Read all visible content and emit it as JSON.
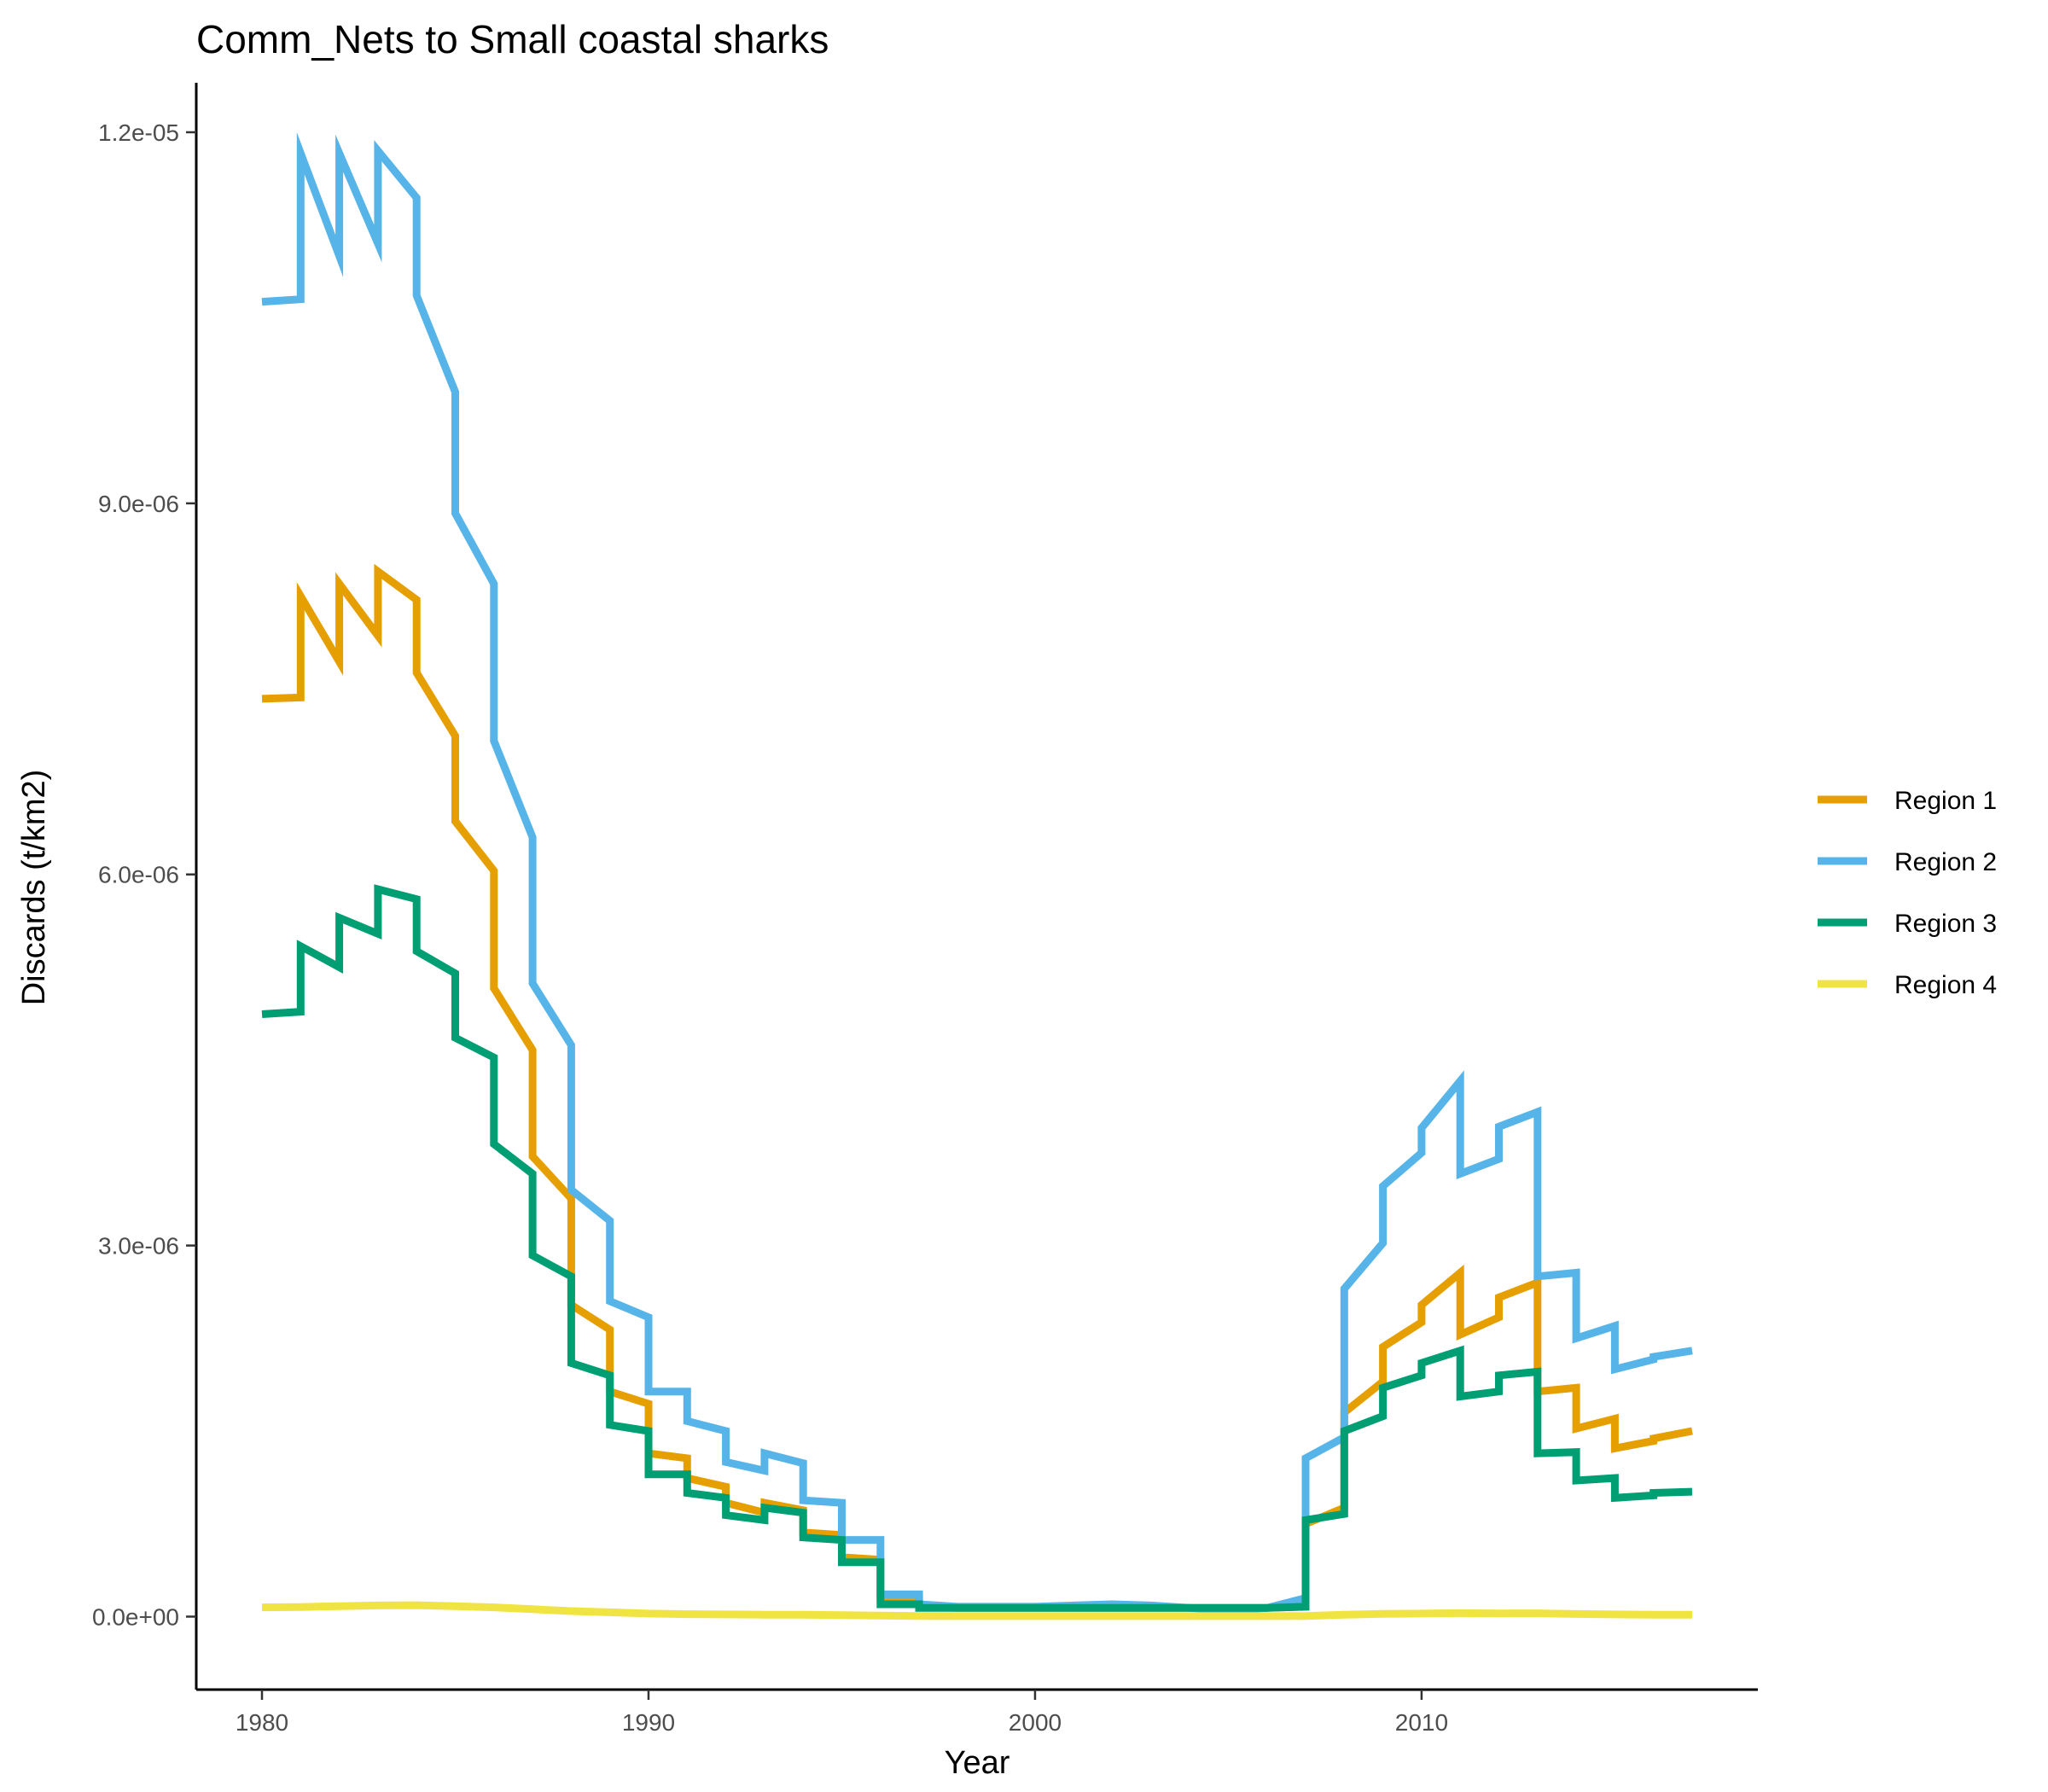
{
  "chart_data": {
    "type": "line",
    "title": "Comm_Nets to Small coastal sharks",
    "xlabel": "Year",
    "ylabel": "Discards (t/km2)",
    "xlim": [
      1978.3,
      2018.7
    ],
    "ylim": [
      -5.9e-07,
      1.24e-05
    ],
    "x_ticks": [
      1980,
      1990,
      2000,
      2010
    ],
    "x_tick_labels": [
      "1980",
      "1990",
      "2000",
      "2010"
    ],
    "y_ticks": [
      0,
      3e-06,
      6e-06,
      9e-06,
      1.2e-05
    ],
    "y_tick_labels": [
      "0.0e+00",
      "3.0e-06",
      "6.0e-06",
      "9.0e-06",
      "1.2e-05"
    ],
    "grid": false,
    "legend_position": "right",
    "series": [
      {
        "name": "Region 1",
        "color": "#E69F00",
        "x": [
          1980,
          1981,
          1981,
          1982,
          1982,
          1983,
          1983,
          1984,
          1984,
          1985,
          1985,
          1986,
          1986,
          1987,
          1987,
          1988,
          1988,
          1989,
          1989,
          1990,
          1990,
          1991,
          1991,
          1992,
          1992,
          1993,
          1993,
          1994,
          1994,
          1995,
          1995,
          1996,
          1996,
          1997,
          1997,
          1998,
          1999,
          2000,
          2001,
          2002,
          2003,
          2004,
          2005,
          2006,
          2007,
          2007,
          2008,
          2008,
          2009,
          2009,
          2010,
          2010,
          2011,
          2011,
          2012,
          2012,
          2013,
          2013,
          2014,
          2014,
          2015,
          2015,
          2016,
          2016,
          2017
        ],
        "y": [
          7.42e-06,
          7.43e-06,
          8.25e-06,
          7.72e-06,
          8.35e-06,
          7.93e-06,
          8.45e-06,
          8.22e-06,
          7.63e-06,
          7.12e-06,
          6.43e-06,
          6.03e-06,
          5.08e-06,
          4.58e-06,
          3.72e-06,
          3.38e-06,
          2.52e-06,
          2.32e-06,
          1.82e-06,
          1.72e-06,
          1.32e-06,
          1.28e-06,
          1.12e-06,
          1.05e-06,
          9.2e-07,
          8.4e-07,
          9.2e-07,
          8.6e-07,
          6.8e-07,
          6.6e-07,
          4.8e-07,
          4.6e-07,
          1.4e-07,
          1.4e-07,
          8e-08,
          7e-08,
          7e-08,
          7e-08,
          7e-08,
          7e-08,
          7e-08,
          7e-08,
          7e-08,
          7e-08,
          8e-08,
          7.5e-07,
          8.8e-07,
          1.65e-06,
          1.9e-06,
          2.18e-06,
          2.38e-06,
          2.52e-06,
          2.78e-06,
          2.28e-06,
          2.42e-06,
          2.58e-06,
          2.7e-06,
          1.82e-06,
          1.85e-06,
          1.52e-06,
          1.6e-06,
          1.36e-06,
          1.42e-06,
          1.44e-06,
          1.5e-06
        ]
      },
      {
        "name": "Region 2",
        "color": "#56B4E9",
        "x": [
          1980,
          1981,
          1981,
          1982,
          1982,
          1983,
          1983,
          1984,
          1984,
          1985,
          1985,
          1986,
          1986,
          1987,
          1987,
          1988,
          1988,
          1989,
          1989,
          1990,
          1990,
          1991,
          1991,
          1992,
          1992,
          1993,
          1993,
          1994,
          1994,
          1995,
          1995,
          1996,
          1996,
          1997,
          1997,
          1998,
          1999,
          2000,
          2001,
          2002,
          2003,
          2004,
          2005,
          2006,
          2007,
          2007,
          2008,
          2008,
          2009,
          2009,
          2010,
          2010,
          2011,
          2011,
          2012,
          2012,
          2013,
          2013,
          2014,
          2014,
          2015,
          2015,
          2016,
          2016,
          2017
        ],
        "y": [
          1.063e-05,
          1.065e-05,
          1.183e-05,
          1.1e-05,
          1.183e-05,
          1.11e-05,
          1.185e-05,
          1.147e-05,
          1.068e-05,
          9.9e-06,
          8.92e-06,
          8.35e-06,
          7.08e-06,
          6.3e-06,
          5.12e-06,
          4.62e-06,
          3.45e-06,
          3.2e-06,
          2.55e-06,
          2.42e-06,
          1.82e-06,
          1.82e-06,
          1.58e-06,
          1.5e-06,
          1.25e-06,
          1.18e-06,
          1.32e-06,
          1.24e-06,
          9.4e-07,
          9.2e-07,
          6.2e-07,
          6.2e-07,
          1.8e-07,
          1.8e-07,
          1e-07,
          8e-08,
          8e-08,
          8e-08,
          9e-08,
          1e-07,
          9e-08,
          7e-08,
          5e-08,
          7e-08,
          1.5e-07,
          1.28e-06,
          1.45e-06,
          2.65e-06,
          3.02e-06,
          3.48e-06,
          3.75e-06,
          3.95e-06,
          4.33e-06,
          3.58e-06,
          3.7e-06,
          3.96e-06,
          4.08e-06,
          2.75e-06,
          2.78e-06,
          2.25e-06,
          2.35e-06,
          2e-06,
          2.08e-06,
          2.1e-06,
          2.15e-06
        ]
      },
      {
        "name": "Region 3",
        "color": "#009E73",
        "x": [
          1980,
          1981,
          1981,
          1982,
          1982,
          1983,
          1983,
          1984,
          1984,
          1985,
          1985,
          1986,
          1986,
          1987,
          1987,
          1988,
          1988,
          1989,
          1989,
          1990,
          1990,
          1991,
          1991,
          1992,
          1992,
          1993,
          1993,
          1994,
          1994,
          1995,
          1995,
          1996,
          1996,
          1997,
          1997,
          1998,
          1999,
          2000,
          2001,
          2002,
          2003,
          2004,
          2005,
          2006,
          2007,
          2007,
          2008,
          2008,
          2009,
          2009,
          2010,
          2010,
          2011,
          2011,
          2012,
          2012,
          2013,
          2013,
          2014,
          2014,
          2015,
          2015,
          2016,
          2016,
          2017
        ],
        "y": [
          4.87e-06,
          4.89e-06,
          5.42e-06,
          5.25e-06,
          5.65e-06,
          5.52e-06,
          5.88e-06,
          5.8e-06,
          5.38e-06,
          5.2e-06,
          4.68e-06,
          4.52e-06,
          3.82e-06,
          3.58e-06,
          2.92e-06,
          2.75e-06,
          2.05e-06,
          1.95e-06,
          1.55e-06,
          1.5e-06,
          1.15e-06,
          1.15e-06,
          1e-06,
          9.6e-07,
          8.2e-07,
          7.8e-07,
          8.8e-07,
          8.4e-07,
          6.4e-07,
          6.2e-07,
          4.4e-07,
          4.4e-07,
          1e-07,
          1e-07,
          7e-08,
          7e-08,
          7e-08,
          7e-08,
          7e-08,
          7e-08,
          7e-08,
          7e-08,
          7e-08,
          7e-08,
          8e-08,
          7.8e-07,
          8.3e-07,
          1.5e-06,
          1.62e-06,
          1.85e-06,
          1.95e-06,
          2.05e-06,
          2.15e-06,
          1.78e-06,
          1.82e-06,
          1.95e-06,
          1.98e-06,
          1.32e-06,
          1.33e-06,
          1.1e-06,
          1.12e-06,
          9.6e-07,
          9.8e-07,
          1e-06,
          1.01e-06
        ]
      },
      {
        "name": "Region 4",
        "color": "#F0E442",
        "x": [
          1980,
          1981,
          1982,
          1983,
          1984,
          1985,
          1986,
          1987,
          1988,
          1989,
          1990,
          1991,
          1992,
          1993,
          1994,
          1995,
          1996,
          1997,
          1998,
          1999,
          2000,
          2001,
          2002,
          2003,
          2004,
          2005,
          2006,
          2007,
          2008,
          2009,
          2010,
          2011,
          2012,
          2013,
          2014,
          2015,
          2016,
          2017
        ],
        "y": [
          7.5e-08,
          7.8e-08,
          8.5e-08,
          9e-08,
          9.2e-08,
          8.5e-08,
          7.5e-08,
          6e-08,
          4.5e-08,
          3.5e-08,
          2.5e-08,
          2e-08,
          1.8e-08,
          1.6e-08,
          1.5e-08,
          1.2e-08,
          8e-09,
          5e-09,
          4e-09,
          4e-09,
          4e-09,
          4e-09,
          4e-09,
          4e-09,
          4e-09,
          4e-09,
          4e-09,
          5e-09,
          1.5e-08,
          2.2e-08,
          2.5e-08,
          2.8e-08,
          2.6e-08,
          2.7e-08,
          2.1e-08,
          1.8e-08,
          1.6e-08,
          1.5e-08
        ]
      }
    ]
  }
}
